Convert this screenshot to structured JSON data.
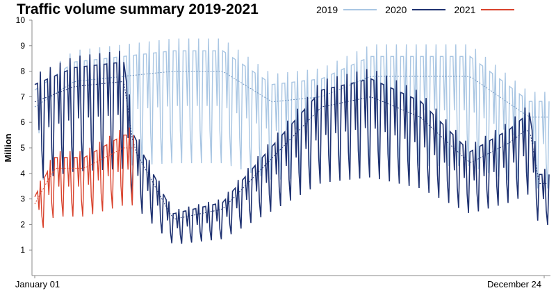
{
  "chart_data": {
    "type": "line",
    "title": "Traffic volume summary 2019-2021",
    "ylabel": "Million",
    "xlabel": "",
    "x_tick_labels": [
      "January 01",
      "December 24"
    ],
    "ylim": [
      0,
      10
    ],
    "yticks": [
      1,
      2,
      3,
      4,
      5,
      6,
      7,
      8,
      9,
      10
    ],
    "grid": false,
    "legend_position": "top-right",
    "weekly_pattern": [
      1.0,
      1.0,
      1.0,
      0.98,
      1.06,
      0.86,
      0.7
    ],
    "series": [
      {
        "name": "2019",
        "color": "#a9c6e3",
        "dashed_trend_color": "#6f96c2",
        "trend_week": [
          1,
          5,
          10,
          15,
          20,
          25,
          30,
          35,
          40,
          45,
          51
        ],
        "trend_values": [
          6.6,
          7.6,
          7.8,
          8.0,
          8.0,
          6.8,
          7.0,
          7.8,
          7.8,
          7.8,
          6.2
        ],
        "range_weeks": [
          1,
          52
        ]
      },
      {
        "name": "2020",
        "color": "#1f3271",
        "dashed_trend_color": "#1f3271",
        "trend_week": [
          1,
          5,
          10,
          11,
          13,
          15,
          20,
          25,
          30,
          35,
          40,
          45,
          49,
          51,
          52
        ],
        "trend_values": [
          6.8,
          7.4,
          7.6,
          5.0,
          3.6,
          2.2,
          2.6,
          4.6,
          6.6,
          7.0,
          6.2,
          4.4,
          5.2,
          5.8,
          3.6
        ],
        "range_weeks": [
          1,
          52
        ]
      },
      {
        "name": "2021",
        "color": "#d9422c",
        "dashed_trend_color": "#d9422c",
        "trend_week": [
          1,
          3,
          6,
          9,
          10
        ],
        "trend_values": [
          2.8,
          4.2,
          4.2,
          4.8,
          5.0
        ],
        "range_weeks": [
          1,
          10
        ]
      }
    ]
  }
}
